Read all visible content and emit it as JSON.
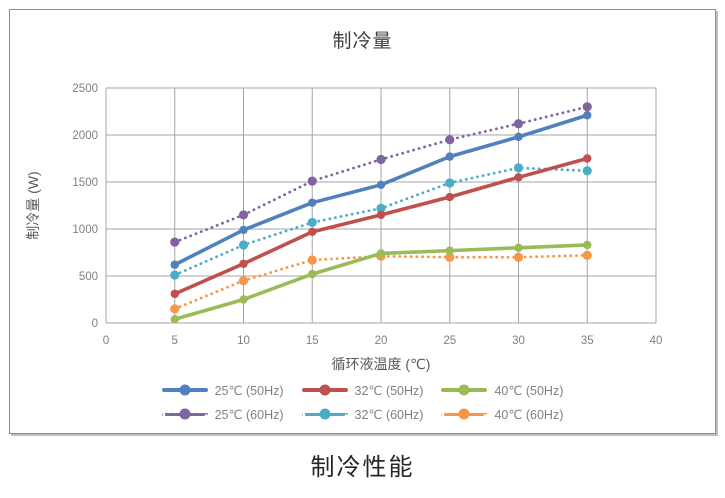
{
  "title": "制冷量",
  "caption": "制冷性能",
  "chart_data": {
    "type": "line",
    "title": "制冷量",
    "xlabel": "循环液温度 (℃)",
    "ylabel": "制冷量 (W)",
    "xlim": [
      0,
      40
    ],
    "ylim": [
      0,
      2500
    ],
    "xticks": [
      0,
      5,
      10,
      15,
      20,
      25,
      30,
      35,
      40
    ],
    "yticks": [
      0,
      500,
      1000,
      1500,
      2000,
      2500
    ],
    "grid": true,
    "legend_position": "bottom",
    "x": [
      5,
      10,
      15,
      20,
      25,
      30,
      35
    ],
    "series": [
      {
        "name": "25℃ (50Hz)",
        "style": "solid",
        "color": "#4F81BD",
        "values": [
          620,
          990,
          1280,
          1470,
          1770,
          1980,
          2210
        ]
      },
      {
        "name": "32℃ (50Hz)",
        "style": "solid",
        "color": "#C0504D",
        "values": [
          310,
          630,
          970,
          1150,
          1340,
          1550,
          1750
        ]
      },
      {
        "name": "40℃ (50Hz)",
        "style": "solid",
        "color": "#9BBB59",
        "values": [
          40,
          250,
          520,
          740,
          770,
          800,
          830
        ]
      },
      {
        "name": "25℃ (60Hz)",
        "style": "dotted",
        "color": "#8064A2",
        "values": [
          860,
          1150,
          1510,
          1740,
          1950,
          2120,
          2300
        ]
      },
      {
        "name": "32℃ (60Hz)",
        "style": "dotted",
        "color": "#4BACC6",
        "values": [
          510,
          830,
          1070,
          1220,
          1490,
          1650,
          1620
        ]
      },
      {
        "name": "40℃ (60Hz)",
        "style": "dotted",
        "color": "#F79646",
        "values": [
          150,
          450,
          670,
          710,
          700,
          700,
          720
        ]
      }
    ]
  },
  "colors": {
    "grid": "#A6A6A6",
    "tick_text": "#7F7F7F",
    "axis_title_text": "#595959",
    "chart_title_text": "#3F3F3F",
    "caption_text": "#262626",
    "box_border": "#8C8C8C"
  }
}
